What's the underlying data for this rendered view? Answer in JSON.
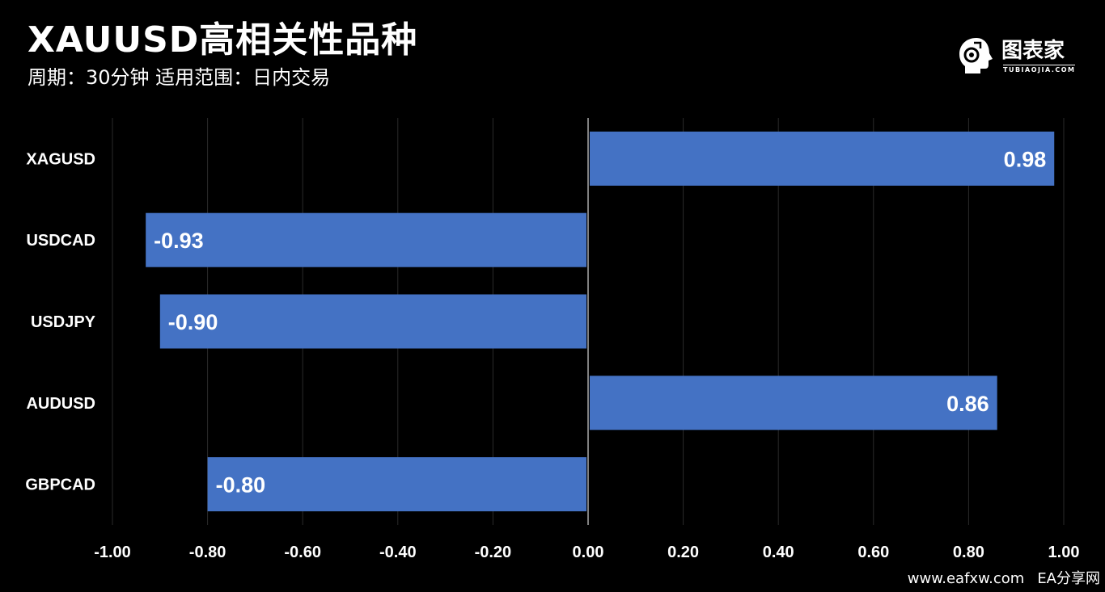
{
  "header": {
    "title": "XAUUSD高相关性品种",
    "subtitle": "周期：30分钟 适用范围：日内交易"
  },
  "brand": {
    "name": "图表家",
    "sub": "TUBIAOJIA.COM",
    "icon": "head-logo-icon"
  },
  "footer": {
    "url": "www.eafxw.com",
    "site": "EA分享网"
  },
  "colors": {
    "background": "#000000",
    "bar": "#4472C4",
    "grid": "#2a2a2a",
    "zero_line": "#808080",
    "text": "#ffffff"
  },
  "chart_data": {
    "type": "bar",
    "orientation": "horizontal",
    "categories": [
      "XAGUSD",
      "USDCAD",
      "USDJPY",
      "AUDUSD",
      "GBPCAD"
    ],
    "values": [
      0.98,
      -0.93,
      -0.9,
      0.86,
      -0.8
    ],
    "value_labels": [
      "0.98",
      "-0.93",
      "-0.90",
      "0.86",
      "-0.80"
    ],
    "title": "XAUUSD高相关性品种",
    "subtitle": "周期：30分钟 适用范围：日内交易",
    "xlabel": "",
    "ylabel": "",
    "xlim": [
      -1.0,
      1.0
    ],
    "xticks": [
      -1.0,
      -0.8,
      -0.6,
      -0.4,
      -0.2,
      0.0,
      0.2,
      0.4,
      0.6,
      0.8,
      1.0
    ],
    "xtick_labels": [
      "-1.00",
      "-0.80",
      "-0.60",
      "-0.40",
      "-0.20",
      "0.00",
      "0.20",
      "0.40",
      "0.60",
      "0.80",
      "1.00"
    ],
    "grid": true,
    "legend": "none"
  }
}
